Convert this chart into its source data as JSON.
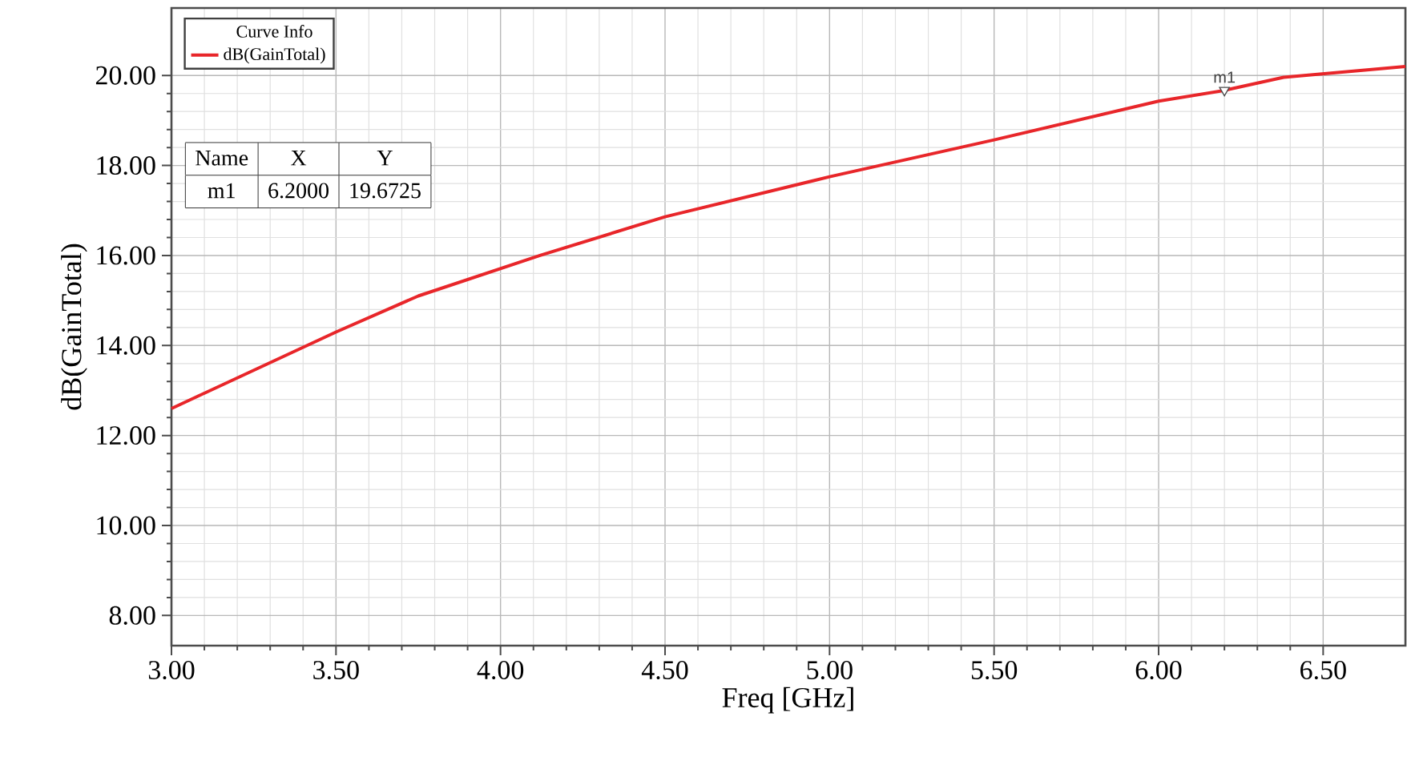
{
  "chart_data": {
    "type": "line",
    "xlabel": "Freq [GHz]",
    "ylabel": "dB(GainTotal)",
    "legend_title": "Curve Info",
    "xlim": [
      3.0,
      6.75
    ],
    "ylim": [
      7.33,
      21.5
    ],
    "xticks": [
      {
        "value": 3.0,
        "label": "3.00"
      },
      {
        "value": 3.5,
        "label": "3.50"
      },
      {
        "value": 4.0,
        "label": "4.00"
      },
      {
        "value": 4.5,
        "label": "4.50"
      },
      {
        "value": 5.0,
        "label": "5.00"
      },
      {
        "value": 5.5,
        "label": "5.50"
      },
      {
        "value": 6.0,
        "label": "6.00"
      },
      {
        "value": 6.5,
        "label": "6.50"
      }
    ],
    "yticks": [
      {
        "value": 8,
        "label": "8.00"
      },
      {
        "value": 10,
        "label": "10.00"
      },
      {
        "value": 12,
        "label": "12.00"
      },
      {
        "value": 14,
        "label": "14.00"
      },
      {
        "value": 16,
        "label": "16.00"
      },
      {
        "value": 18,
        "label": "18.00"
      },
      {
        "value": 20,
        "label": "20.00"
      }
    ],
    "grid": true,
    "legend": "top left",
    "marker": "none",
    "line_style": "solid",
    "series": [
      {
        "name": "dB(GainTotal)",
        "color": "#e8262a",
        "x": [
          3.0,
          3.5,
          3.75,
          4.12,
          4.5,
          5.0,
          5.5,
          6.0,
          6.2,
          6.38,
          6.75
        ],
        "values": [
          12.6,
          14.3,
          15.1,
          16.0,
          16.86,
          17.75,
          18.57,
          19.43,
          19.67,
          19.96,
          20.2
        ]
      },
      {
        "type": "scatter",
        "color": "#4c4c4c",
        "marker": "triangle",
        "x": [
          6.2
        ],
        "values": [
          19.6725
        ]
      }
    ],
    "annotations": [
      {
        "text": "m1",
        "x": 6.2,
        "y": 19.6725
      },
      "Name",
      "X",
      "Y",
      "m1",
      "6.2000",
      "19.6725"
    ]
  }
}
